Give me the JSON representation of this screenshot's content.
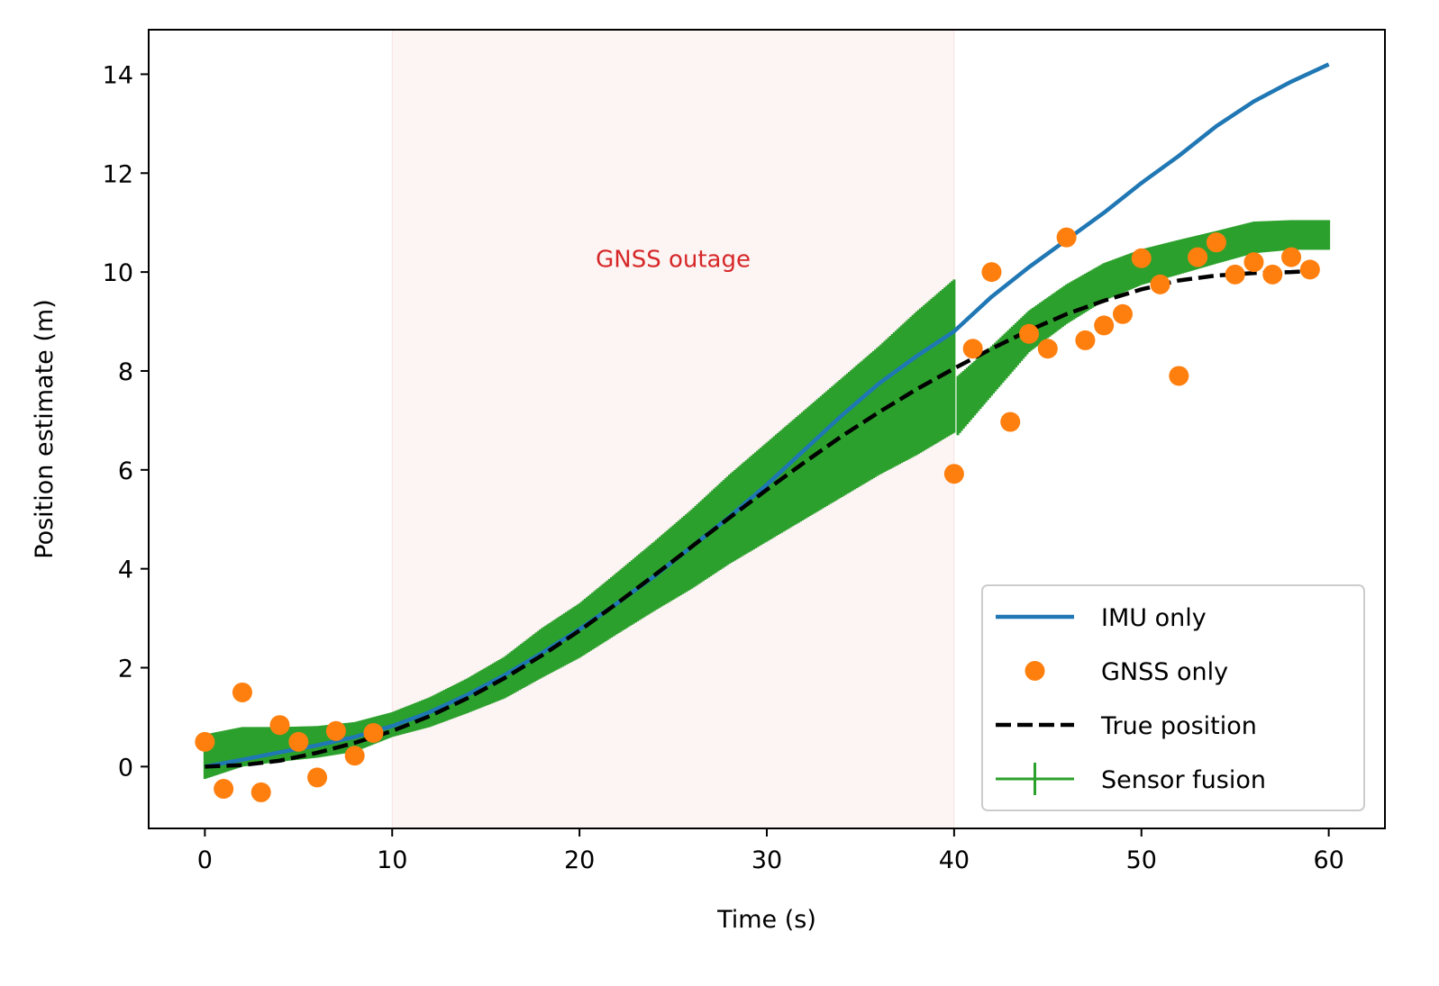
{
  "chart_data": {
    "type": "line",
    "title": "",
    "xlabel": "Time (s)",
    "ylabel": "Position estimate (m)",
    "xlim": [
      -3,
      63
    ],
    "ylim": [
      -1.25,
      14.9
    ],
    "x_ticks": [
      0,
      10,
      20,
      30,
      40,
      50,
      60
    ],
    "y_ticks": [
      0,
      2,
      4,
      6,
      8,
      10,
      12,
      14
    ],
    "grid": false,
    "legend_position": "lower right",
    "annotation": {
      "text": "GNSS outage",
      "x": 25,
      "y": 10.1,
      "color": "#d62728"
    },
    "outage_span": {
      "x_start": 10,
      "x_end": 40,
      "color": "#d62728"
    },
    "series": [
      {
        "name": "IMU only",
        "kind": "line",
        "color": "#1f77b4",
        "x": [
          0,
          2,
          4,
          6,
          8,
          10,
          12,
          14,
          16,
          18,
          20,
          22,
          24,
          26,
          28,
          30,
          32,
          34,
          36,
          38,
          40,
          42,
          44,
          46,
          48,
          50,
          52,
          54,
          56,
          58,
          60
        ],
        "y": [
          0.0,
          0.14,
          0.29,
          0.43,
          0.6,
          0.82,
          1.1,
          1.45,
          1.85,
          2.3,
          2.78,
          3.3,
          3.85,
          4.45,
          5.05,
          5.7,
          6.4,
          7.1,
          7.75,
          8.3,
          8.8,
          9.5,
          10.1,
          10.65,
          11.2,
          11.8,
          12.35,
          12.95,
          13.45,
          13.85,
          14.2
        ]
      },
      {
        "name": "GNSS only",
        "kind": "scatter",
        "color": "#ff7f0e",
        "x": [
          0,
          1,
          2,
          3,
          4,
          5,
          6,
          7,
          8,
          9,
          40,
          41,
          42,
          43,
          44,
          45,
          46,
          47,
          48,
          49,
          50,
          51,
          52,
          53,
          54,
          55,
          56,
          57,
          58,
          59
        ],
        "y": [
          0.5,
          -0.45,
          1.5,
          -0.52,
          0.84,
          0.5,
          -0.22,
          0.72,
          0.22,
          0.68,
          5.92,
          8.45,
          10.0,
          6.97,
          8.75,
          8.45,
          10.7,
          8.62,
          8.92,
          9.15,
          10.28,
          9.75,
          7.9,
          10.3,
          10.6,
          9.95,
          10.2,
          9.95,
          10.3,
          10.05
        ]
      },
      {
        "name": "True position",
        "kind": "dashed-line",
        "color": "#000000",
        "x": [
          0,
          2,
          4,
          6,
          8,
          10,
          12,
          14,
          16,
          18,
          20,
          22,
          24,
          26,
          28,
          30,
          32,
          34,
          36,
          38,
          40,
          42,
          44,
          46,
          48,
          50,
          52,
          54,
          56,
          58,
          59
        ],
        "y": [
          0.0,
          0.03,
          0.12,
          0.28,
          0.48,
          0.72,
          1.02,
          1.38,
          1.79,
          2.25,
          2.75,
          3.3,
          3.87,
          4.45,
          5.03,
          5.6,
          6.15,
          6.68,
          7.17,
          7.63,
          8.05,
          8.45,
          8.82,
          9.15,
          9.42,
          9.65,
          9.83,
          9.93,
          9.98,
          10.0,
          10.02
        ]
      },
      {
        "name": "Sensor fusion",
        "kind": "errorbar",
        "color": "#2ca02c",
        "x": [
          0,
          2,
          4,
          6,
          8,
          10,
          12,
          14,
          16,
          18,
          20,
          22,
          24,
          26,
          28,
          30,
          32,
          34,
          36,
          38,
          40,
          40.2,
          42,
          44,
          46,
          48,
          50,
          52,
          54,
          56,
          58,
          60
        ],
        "y": [
          0.2,
          0.4,
          0.45,
          0.5,
          0.6,
          0.85,
          1.1,
          1.43,
          1.8,
          2.3,
          2.75,
          3.3,
          3.85,
          4.4,
          5.0,
          5.55,
          6.1,
          6.65,
          7.2,
          7.75,
          8.3,
          7.3,
          8.0,
          8.8,
          9.35,
          9.8,
          10.1,
          10.3,
          10.5,
          10.7,
          10.75,
          10.75
        ],
        "error": [
          0.45,
          0.4,
          0.35,
          0.32,
          0.3,
          0.25,
          0.3,
          0.35,
          0.42,
          0.5,
          0.55,
          0.62,
          0.7,
          0.8,
          0.9,
          1.0,
          1.1,
          1.2,
          1.3,
          1.45,
          1.55,
          0.6,
          0.5,
          0.42,
          0.4,
          0.38,
          0.36,
          0.35,
          0.33,
          0.32,
          0.3,
          0.3
        ]
      }
    ]
  }
}
